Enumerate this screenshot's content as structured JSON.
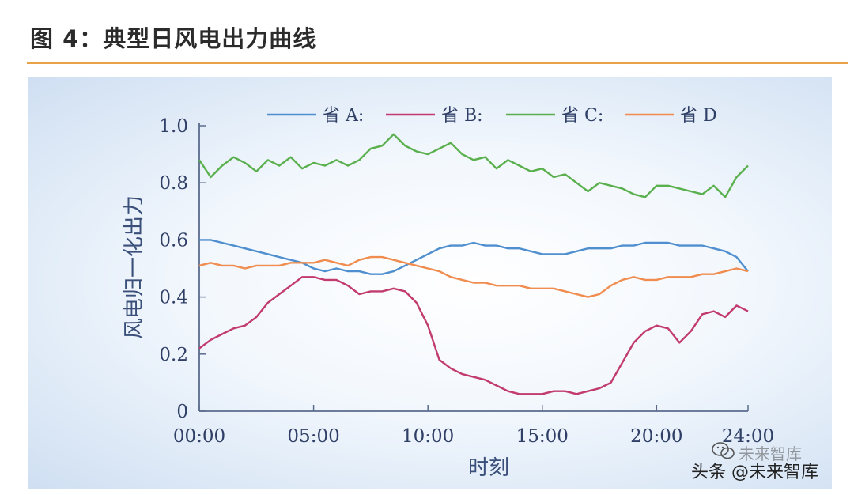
{
  "figure": {
    "title": "图 4：典型日风电出力曲线"
  },
  "watermark": {
    "line1": "未来智库",
    "line2": "头条 @未来智库"
  },
  "colors": {
    "A": "#4f8fcf",
    "B": "#c23b6e",
    "C": "#5bb04e",
    "D": "#ef8c4e",
    "accent_rule": "#e8a248"
  },
  "chart_data": {
    "type": "line",
    "title": "",
    "xlabel": "时刻",
    "ylabel": "风电归一化出力",
    "xlim": [
      0,
      24
    ],
    "ylim": [
      0,
      1.0
    ],
    "x_ticks": [
      {
        "value": 0,
        "label": "00:00"
      },
      {
        "value": 5,
        "label": "05:00"
      },
      {
        "value": 10,
        "label": "10:00"
      },
      {
        "value": 15,
        "label": "15:00"
      },
      {
        "value": 20,
        "label": "20:00"
      },
      {
        "value": 24,
        "label": "24:00"
      }
    ],
    "y_ticks": [
      {
        "value": 0,
        "label": "0"
      },
      {
        "value": 0.2,
        "label": "0.2"
      },
      {
        "value": 0.4,
        "label": "0.4"
      },
      {
        "value": 0.6,
        "label": "0.6"
      },
      {
        "value": 0.8,
        "label": "0.8"
      },
      {
        "value": 1.0,
        "label": "1.0"
      }
    ],
    "legend_position": "top",
    "grid": false,
    "x": [
      0,
      0.5,
      1,
      1.5,
      2,
      2.5,
      3,
      3.5,
      4,
      4.5,
      5,
      5.5,
      6,
      6.5,
      7,
      7.5,
      8,
      8.5,
      9,
      9.5,
      10,
      10.5,
      11,
      11.5,
      12,
      12.5,
      13,
      13.5,
      14,
      14.5,
      15,
      15.5,
      16,
      16.5,
      17,
      17.5,
      18,
      18.5,
      19,
      19.5,
      20,
      20.5,
      21,
      21.5,
      22,
      22.5,
      23,
      23.5,
      24
    ],
    "series": [
      {
        "key": "A",
        "name": "省 A:",
        "values": [
          0.6,
          0.6,
          0.59,
          0.58,
          0.57,
          0.56,
          0.55,
          0.54,
          0.53,
          0.52,
          0.5,
          0.49,
          0.5,
          0.49,
          0.49,
          0.48,
          0.48,
          0.49,
          0.51,
          0.53,
          0.55,
          0.57,
          0.58,
          0.58,
          0.59,
          0.58,
          0.58,
          0.57,
          0.57,
          0.56,
          0.55,
          0.55,
          0.55,
          0.56,
          0.57,
          0.57,
          0.57,
          0.58,
          0.58,
          0.59,
          0.59,
          0.59,
          0.58,
          0.58,
          0.58,
          0.57,
          0.56,
          0.54,
          0.49
        ]
      },
      {
        "key": "B",
        "name": "省 B:",
        "values": [
          0.22,
          0.25,
          0.27,
          0.29,
          0.3,
          0.33,
          0.38,
          0.41,
          0.44,
          0.47,
          0.47,
          0.46,
          0.46,
          0.44,
          0.41,
          0.42,
          0.42,
          0.43,
          0.42,
          0.38,
          0.3,
          0.18,
          0.15,
          0.13,
          0.12,
          0.11,
          0.09,
          0.07,
          0.06,
          0.06,
          0.06,
          0.07,
          0.07,
          0.06,
          0.07,
          0.08,
          0.1,
          0.17,
          0.24,
          0.28,
          0.3,
          0.29,
          0.24,
          0.28,
          0.34,
          0.35,
          0.33,
          0.37,
          0.35
        ]
      },
      {
        "key": "C",
        "name": "省 C:",
        "values": [
          0.88,
          0.82,
          0.86,
          0.89,
          0.87,
          0.84,
          0.88,
          0.86,
          0.89,
          0.85,
          0.87,
          0.86,
          0.88,
          0.86,
          0.88,
          0.92,
          0.93,
          0.97,
          0.93,
          0.91,
          0.9,
          0.92,
          0.94,
          0.9,
          0.88,
          0.89,
          0.85,
          0.88,
          0.86,
          0.84,
          0.85,
          0.82,
          0.83,
          0.8,
          0.77,
          0.8,
          0.79,
          0.78,
          0.76,
          0.75,
          0.79,
          0.79,
          0.78,
          0.77,
          0.76,
          0.79,
          0.75,
          0.82,
          0.86
        ]
      },
      {
        "key": "D",
        "name": "省 D",
        "values": [
          0.51,
          0.52,
          0.51,
          0.51,
          0.5,
          0.51,
          0.51,
          0.51,
          0.52,
          0.52,
          0.52,
          0.53,
          0.52,
          0.51,
          0.53,
          0.54,
          0.54,
          0.53,
          0.52,
          0.51,
          0.5,
          0.49,
          0.47,
          0.46,
          0.45,
          0.45,
          0.44,
          0.44,
          0.44,
          0.43,
          0.43,
          0.43,
          0.42,
          0.41,
          0.4,
          0.41,
          0.44,
          0.46,
          0.47,
          0.46,
          0.46,
          0.47,
          0.47,
          0.47,
          0.48,
          0.48,
          0.49,
          0.5,
          0.49
        ]
      }
    ]
  }
}
